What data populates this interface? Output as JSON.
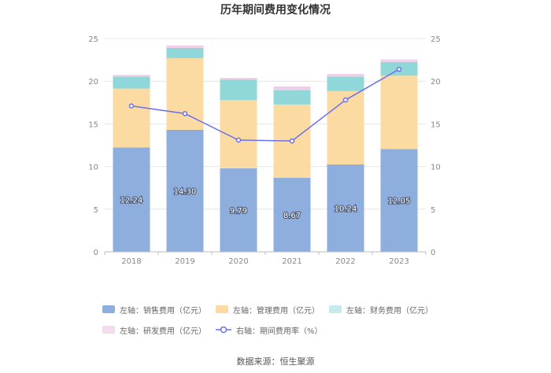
{
  "page": {
    "title": "历年期间费用变化情况",
    "source": "数据来源：恒生聚源"
  },
  "chart_data": {
    "type": "bar",
    "stacked": true,
    "title": "历年期间费用变化情况",
    "categories": [
      "2018",
      "2019",
      "2020",
      "2021",
      "2022",
      "2023"
    ],
    "ylim_left": [
      0,
      25
    ],
    "ylim_right": [
      0,
      25
    ],
    "yticks_left": [
      "0",
      "5",
      "10",
      "15",
      "20",
      "25"
    ],
    "yticks_right": [
      "0",
      "5",
      "10",
      "15",
      "20",
      "25"
    ],
    "grid": true,
    "legend_position": "bottom",
    "series": [
      {
        "name": "左轴：销售费用（亿元）",
        "type": "bar",
        "axis": "left",
        "color": "#8eaedd",
        "values": [
          12.24,
          14.3,
          9.79,
          8.67,
          10.24,
          12.05
        ],
        "labels": [
          "12.24",
          "14.30",
          "9.79",
          "8.67",
          "10.24",
          "12.05"
        ]
      },
      {
        "name": "左轴：管理费用（亿元）",
        "type": "bar",
        "axis": "left",
        "color": "#fcdba3",
        "values": [
          6.9,
          8.4,
          8.0,
          8.6,
          8.6,
          8.6
        ]
      },
      {
        "name": "左轴：财务费用（亿元）",
        "type": "bar",
        "axis": "left",
        "color": "#8fd7d8",
        "values": [
          1.4,
          1.2,
          2.4,
          1.7,
          1.7,
          1.6
        ]
      },
      {
        "name": "左轴：研发费用（亿元）",
        "type": "bar",
        "axis": "left",
        "color": "#efcfe8",
        "values": [
          0.2,
          0.3,
          0.2,
          0.4,
          0.3,
          0.3
        ]
      },
      {
        "name": "右轴：期间费用率（%）",
        "type": "line",
        "axis": "right",
        "color": "#6a6ff0",
        "values": [
          17.1,
          16.2,
          13.1,
          13.0,
          17.8,
          21.4
        ]
      }
    ]
  }
}
